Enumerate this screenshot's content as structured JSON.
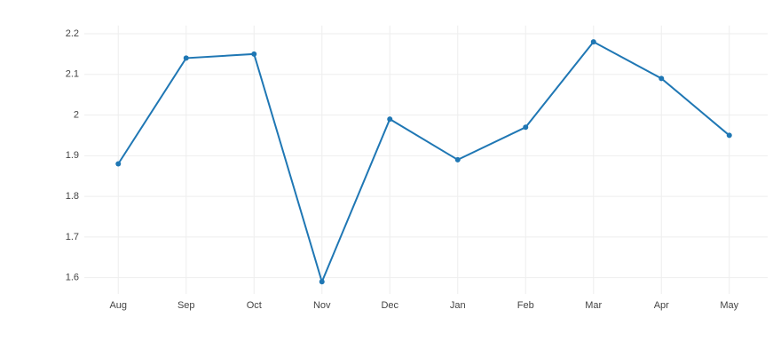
{
  "chart_data": {
    "type": "line",
    "categories": [
      "Aug",
      "Sep",
      "Oct",
      "Nov",
      "Dec",
      "Jan",
      "Feb",
      "Mar",
      "Apr",
      "May"
    ],
    "values": [
      1.88,
      2.14,
      2.15,
      1.59,
      1.99,
      1.89,
      1.97,
      2.18,
      2.09,
      1.95
    ],
    "color": "#1f77b4",
    "ylim": [
      1.56,
      2.22
    ],
    "yticks": [
      1.6,
      1.7,
      1.8,
      1.9,
      2,
      2.1,
      2.2
    ],
    "grid": true
  }
}
